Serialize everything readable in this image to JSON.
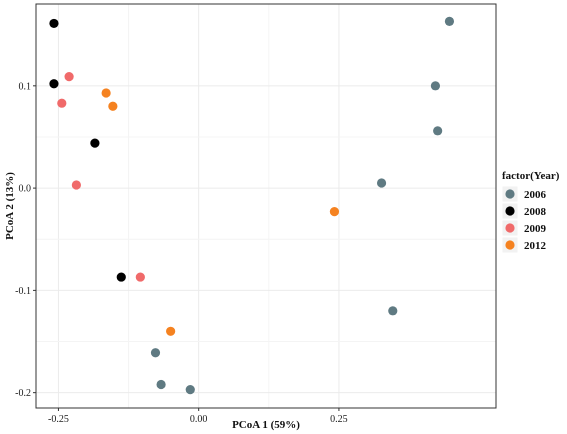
{
  "chart_data": {
    "type": "scatter",
    "title": "",
    "xlabel": "PCoA 1 (59%)",
    "ylabel": "PCoA 2 (13%)",
    "xlim": [
      -0.29,
      0.53
    ],
    "ylim": [
      -0.215,
      0.18
    ],
    "x_ticks": [
      -0.25,
      0.0,
      0.25
    ],
    "x_tick_labels": [
      "-0.25",
      "0.00",
      "0.25"
    ],
    "y_ticks": [
      -0.2,
      -0.1,
      0.0,
      0.1
    ],
    "y_tick_labels": [
      "-0.2",
      "-0.1",
      "0.0",
      "0.1"
    ],
    "grid": true,
    "legend": {
      "title": "factor(Year)",
      "position": "right"
    },
    "series": [
      {
        "name": "2006",
        "color": "#5f7a82",
        "points": [
          {
            "x": 0.447,
            "y": 0.163
          },
          {
            "x": 0.422,
            "y": 0.1
          },
          {
            "x": 0.426,
            "y": 0.056
          },
          {
            "x": 0.326,
            "y": 0.005
          },
          {
            "x": 0.346,
            "y": -0.12
          },
          {
            "x": -0.077,
            "y": -0.161
          },
          {
            "x": -0.067,
            "y": -0.192
          },
          {
            "x": -0.015,
            "y": -0.197
          }
        ]
      },
      {
        "name": "2008",
        "color": "#000000",
        "points": [
          {
            "x": -0.258,
            "y": 0.161
          },
          {
            "x": -0.258,
            "y": 0.102
          },
          {
            "x": -0.185,
            "y": 0.044
          },
          {
            "x": -0.138,
            "y": -0.087
          }
        ]
      },
      {
        "name": "2009",
        "color": "#f06a6a",
        "points": [
          {
            "x": -0.231,
            "y": 0.109
          },
          {
            "x": -0.244,
            "y": 0.083
          },
          {
            "x": -0.218,
            "y": 0.003
          },
          {
            "x": -0.104,
            "y": -0.087
          }
        ]
      },
      {
        "name": "2012",
        "color": "#f58220",
        "points": [
          {
            "x": -0.165,
            "y": 0.093
          },
          {
            "x": -0.153,
            "y": 0.08
          },
          {
            "x": 0.242,
            "y": -0.023
          },
          {
            "x": -0.05,
            "y": -0.14
          }
        ]
      }
    ]
  }
}
